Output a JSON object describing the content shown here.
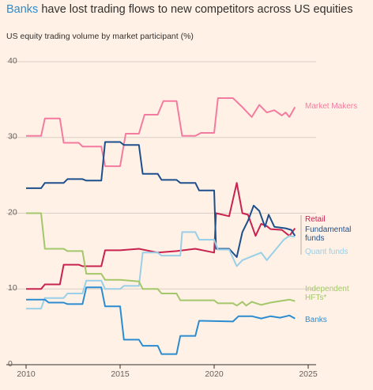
{
  "chart_data": {
    "type": "line",
    "title": [
      "Banks",
      " have lost trading flows to new competitors across US equities"
    ],
    "title_highlight_color": "#2b8cd1",
    "subtitle": "US equity trading volume by market participant (%)",
    "xlim": [
      2010,
      2025
    ],
    "xticks": [
      2010,
      2015,
      2020,
      2025
    ],
    "ylim": [
      0,
      40
    ],
    "yticks": [
      0,
      10,
      20,
      30,
      40
    ],
    "grid": true,
    "series": [
      {
        "name": "Market Makers",
        "color": "#f47ba0",
        "x": [
          2010,
          2010.8,
          2011,
          2011.8,
          2012,
          2012.8,
          2013,
          2014,
          2014.2,
          2015,
          2015.3,
          2016,
          2016.3,
          2017,
          2017.3,
          2018,
          2018.3,
          2019,
          2019.3,
          2020,
          2020.2,
          2021,
          2021.5,
          2022,
          2022.4,
          2022.8,
          2023.2,
          2023.6,
          2023.8,
          2024,
          2024.3
        ],
        "values": [
          30.2,
          30.2,
          32.5,
          32.5,
          29.3,
          29.3,
          28.8,
          28.8,
          26.2,
          26.2,
          30.5,
          30.5,
          33,
          33,
          34.8,
          34.8,
          30.2,
          30.2,
          30.6,
          30.6,
          35.2,
          35.2,
          34,
          32.7,
          34.3,
          33.3,
          33.6,
          32.9,
          33.3,
          32.7,
          34
        ]
      },
      {
        "name": "Retail",
        "color": "#c8234f",
        "x": [
          2010,
          2010.8,
          2011,
          2011.8,
          2012,
          2012.8,
          2013,
          2014,
          2014.2,
          2015,
          2016,
          2017,
          2018,
          2019,
          2020,
          2020.1,
          2020.8,
          2021.2,
          2021.5,
          2021.8,
          2022.2,
          2022.5,
          2022.8,
          2023,
          2023.6,
          2024,
          2024.3
        ],
        "values": [
          10,
          10,
          10.6,
          10.6,
          13.2,
          13.2,
          13,
          13,
          15.1,
          15.1,
          15.3,
          14.8,
          15,
          15.3,
          14.8,
          20,
          19.6,
          24,
          20,
          19.8,
          17,
          18.6,
          18.3,
          17.9,
          17.8,
          17,
          18
        ]
      },
      {
        "name": "Fundamental\nfunds",
        "color": "#1d4f8d",
        "x": [
          2010,
          2010.8,
          2011,
          2012,
          2012.2,
          2013,
          2013.2,
          2014,
          2014.2,
          2015,
          2015.2,
          2016,
          2016.2,
          2017,
          2017.2,
          2018,
          2018.2,
          2019,
          2019.2,
          2020,
          2020.1,
          2020.8,
          2021.2,
          2021.5,
          2021.8,
          2022.1,
          2022.4,
          2022.7,
          2022.9,
          2023.2,
          2023.8,
          2024.1,
          2024.3
        ],
        "values": [
          23.3,
          23.3,
          24,
          24,
          24.5,
          24.5,
          24.3,
          24.3,
          29.4,
          29.4,
          29,
          29,
          25.2,
          25.2,
          24.4,
          24.4,
          24,
          24,
          23,
          23,
          15.3,
          15.3,
          14.2,
          17.5,
          19,
          21,
          20.3,
          18.2,
          19.8,
          18.2,
          18,
          17.8,
          17
        ]
      },
      {
        "name": "Quant funds",
        "color": "#99cfe8",
        "x": [
          2010,
          2010.8,
          2011,
          2012,
          2012.2,
          2013,
          2013.2,
          2014,
          2014.2,
          2015,
          2015.2,
          2016,
          2016.2,
          2017,
          2017.2,
          2018.2,
          2018.3,
          2019,
          2019.2,
          2020,
          2020.2,
          2020.8,
          2021.2,
          2021.5,
          2022,
          2022.5,
          2022.8,
          2023.2,
          2023.7,
          2024,
          2024.3
        ],
        "values": [
          7.4,
          7.4,
          8.8,
          8.8,
          9.4,
          9.4,
          11.1,
          11.1,
          10,
          10,
          10.4,
          10.4,
          14.8,
          14.8,
          14.4,
          14.4,
          17.5,
          17.5,
          16.5,
          16.5,
          15.2,
          15.2,
          13,
          13.8,
          14.3,
          14.8,
          13.8,
          15,
          16.5,
          17,
          16.9
        ]
      },
      {
        "name": "Independent\nHFTs*",
        "color": "#a3c76a",
        "x": [
          2010,
          2010.8,
          2011,
          2012,
          2012.2,
          2013,
          2013.2,
          2014,
          2014.2,
          2015,
          2016,
          2016.2,
          2017,
          2017.2,
          2018,
          2018.2,
          2020,
          2020.2,
          2021,
          2021.2,
          2021.5,
          2021.7,
          2022,
          2022.5,
          2023,
          2023.5,
          2024,
          2024.3
        ],
        "values": [
          20,
          20,
          15.3,
          15.3,
          15,
          15,
          12,
          12,
          11.2,
          11.2,
          11,
          10,
          10,
          9.4,
          9.4,
          8.5,
          8.5,
          8.1,
          8.1,
          7.8,
          8.3,
          7.8,
          8.3,
          7.9,
          8.2,
          8.4,
          8.6,
          8.4
        ]
      },
      {
        "name": "Banks",
        "color": "#2b8cd1",
        "x": [
          2010,
          2011,
          2011.2,
          2012,
          2012.2,
          2013,
          2013.2,
          2014,
          2014.2,
          2015,
          2015.2,
          2016,
          2016.2,
          2017,
          2017.2,
          2018,
          2018.2,
          2019,
          2019.2,
          2021,
          2021.3,
          2022,
          2022.5,
          2023,
          2023.5,
          2024,
          2024.3
        ],
        "values": [
          8.6,
          8.6,
          8.2,
          8.2,
          8,
          8,
          10.2,
          10.2,
          7.7,
          7.7,
          3.3,
          3.3,
          2.5,
          2.5,
          1.4,
          1.4,
          3.8,
          3.8,
          5.8,
          5.7,
          6.4,
          6.4,
          6.1,
          6.4,
          6.2,
          6.5,
          6.1
        ]
      }
    ]
  }
}
